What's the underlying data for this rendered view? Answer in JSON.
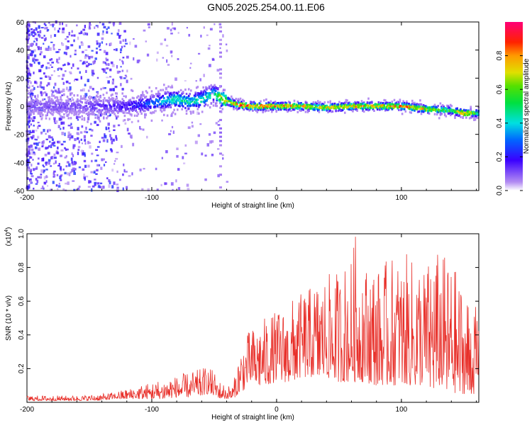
{
  "figure": {
    "title": "GN05.2025.254.00.11.E06"
  },
  "chart_data": [
    {
      "type": "heatmap",
      "xlabel": "Height of straight line (km)",
      "ylabel": "Frequency (Hz)",
      "xlim": [
        -200,
        162
      ],
      "ylim": [
        -60,
        60
      ],
      "xticks": [
        -200,
        -100,
        0,
        100
      ],
      "yticks": [
        60,
        40,
        20,
        0,
        -20,
        -40,
        -60
      ],
      "colorbar": {
        "label": "Normalized spectral amplitude",
        "range": [
          0,
          1
        ],
        "ticks": [
          0.0,
          0.2,
          0.4,
          0.6,
          0.8
        ],
        "colormap": "rainbow (violet-blue-cyan-green-yellow-orange-red-magenta)"
      },
      "ridge": {
        "x": [
          -200,
          -180,
          -160,
          -140,
          -120,
          -100,
          -90,
          -80,
          -70,
          -60,
          -50,
          -45,
          -40,
          -35,
          -30,
          -20,
          0,
          20,
          40,
          60,
          80,
          100,
          120,
          140,
          150,
          162
        ],
        "frequency": [
          0,
          0,
          0,
          0,
          0,
          2,
          4,
          5,
          3,
          5,
          9,
          6,
          4,
          2,
          1,
          0,
          0,
          0,
          -1,
          0,
          0,
          0,
          -2,
          -3,
          -5,
          -5
        ],
        "amplitude": [
          0.1,
          0.12,
          0.12,
          0.15,
          0.18,
          0.3,
          0.4,
          0.5,
          0.45,
          0.5,
          0.45,
          0.7,
          0.8,
          0.85,
          0.9,
          0.9,
          0.85,
          0.8,
          0.75,
          0.8,
          0.8,
          0.85,
          0.75,
          0.6,
          0.9,
          0.5
        ]
      }
    },
    {
      "type": "line",
      "xlabel": "Height of straight line (km)",
      "ylabel": "SNR (10 * v/v)",
      "y_multiplier": "(x10",
      "y_multiplier_exp": "4",
      "y_multiplier_close": ")",
      "xlim": [
        -200,
        162
      ],
      "ylim": [
        0,
        1.0
      ],
      "xticks": [
        -200,
        -100,
        0,
        100
      ],
      "yticks": [
        0.2,
        0.4,
        0.6,
        0.8,
        1.0
      ],
      "color": "#e8302a",
      "envelope": {
        "x": [
          -200,
          -180,
          -160,
          -140,
          -130,
          -120,
          -110,
          -100,
          -90,
          -80,
          -70,
          -60,
          -55,
          -50,
          -45,
          -40,
          -35,
          -30,
          -25,
          -20,
          -10,
          0,
          10,
          20,
          30,
          40,
          50,
          60,
          63,
          70,
          80,
          90,
          100,
          110,
          120,
          130,
          140,
          150,
          155,
          162
        ],
        "min": [
          0.01,
          0.01,
          0.01,
          0.01,
          0.02,
          0.02,
          0.02,
          0.02,
          0.02,
          0.03,
          0.03,
          0.04,
          0.05,
          0.04,
          0.02,
          0.02,
          0.02,
          0.05,
          0.08,
          0.1,
          0.1,
          0.12,
          0.12,
          0.15,
          0.15,
          0.15,
          0.12,
          0.12,
          0.12,
          0.12,
          0.1,
          0.1,
          0.1,
          0.1,
          0.08,
          0.08,
          0.05,
          0.05,
          0.05,
          0.05
        ],
        "max": [
          0.04,
          0.04,
          0.04,
          0.05,
          0.06,
          0.08,
          0.1,
          0.12,
          0.14,
          0.16,
          0.18,
          0.2,
          0.22,
          0.18,
          0.12,
          0.1,
          0.1,
          0.3,
          0.4,
          0.45,
          0.5,
          0.55,
          0.6,
          0.65,
          0.7,
          0.75,
          0.8,
          0.85,
          1.0,
          0.85,
          0.8,
          0.85,
          0.9,
          0.85,
          0.85,
          0.9,
          0.85,
          0.7,
          0.6,
          0.55
        ]
      }
    }
  ]
}
